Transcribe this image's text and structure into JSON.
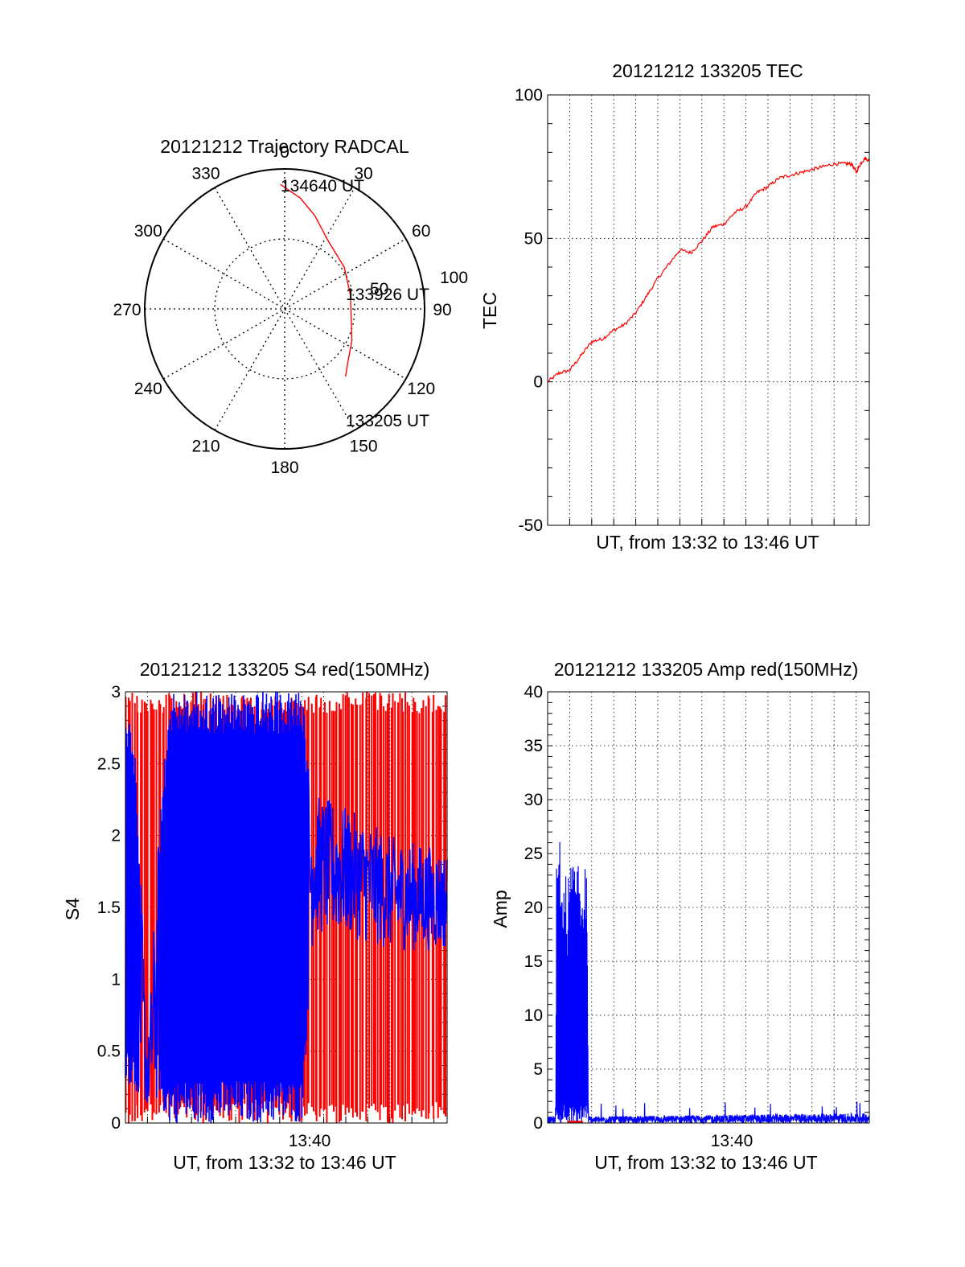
{
  "chart_data": [
    {
      "type": "polar",
      "title": "20121212 Trajectory RADCAL",
      "angle_labels": [
        "0",
        "30",
        "60",
        "90",
        "120",
        "150",
        "180",
        "210",
        "240",
        "270",
        "300",
        "330"
      ],
      "radius_labels": [
        "50",
        "100"
      ],
      "rlim": [
        0,
        100
      ],
      "grid": true,
      "colors": {
        "trajectory": "#ff0000",
        "grid": "#000000"
      },
      "trajectory": [
        {
          "az": 358,
          "r": 89
        },
        {
          "az": 8,
          "r": 80
        },
        {
          "az": 18,
          "r": 70
        },
        {
          "az": 32,
          "r": 58
        },
        {
          "az": 55,
          "r": 52
        },
        {
          "az": 78,
          "r": 48
        },
        {
          "az": 98,
          "r": 48
        },
        {
          "az": 115,
          "r": 53
        },
        {
          "az": 130,
          "r": 59
        },
        {
          "az": 138,
          "r": 65
        }
      ],
      "annotations": [
        {
          "text": "134640 UT",
          "az": 358,
          "r": 89
        },
        {
          "text": "133926 UT",
          "az": 80,
          "r": 48
        },
        {
          "text": "133205 UT",
          "az": 138,
          "r": 65
        }
      ]
    },
    {
      "type": "line",
      "title": "20121212 133205 TEC",
      "xlabel": "UT, from 13:32 to 13:46 UT",
      "ylabel": "TEC",
      "xlim": [
        0,
        14.6
      ],
      "ylim": [
        -50,
        100
      ],
      "yticks": [
        -50,
        0,
        50,
        100
      ],
      "grid": true,
      "series": [
        {
          "color": "#ff0000",
          "x": [
            0,
            0.5,
            1.0,
            1.5,
            2.0,
            2.5,
            3.0,
            3.5,
            4.0,
            4.5,
            5.0,
            5.5,
            6.0,
            6.5,
            7.0,
            7.5,
            8.0,
            8.5,
            9.0,
            9.5,
            10.0,
            10.5,
            11.0,
            11.5,
            12.0,
            12.5,
            13.0,
            13.5,
            13.8,
            14.0,
            14.2,
            14.4,
            14.6
          ],
          "y": [
            0,
            3,
            4,
            9,
            14,
            15,
            18,
            20,
            24,
            30,
            36,
            41,
            46,
            45,
            49,
            54,
            55,
            59,
            61,
            66,
            68,
            71,
            72,
            73,
            74,
            75,
            76,
            76,
            76,
            73,
            76,
            78,
            77
          ]
        }
      ]
    },
    {
      "type": "line",
      "title": "20121212 133205 S4 red(150MHz)",
      "xlabel": "UT, from 13:32 to 13:46 UT",
      "ylabel": "S4",
      "xlim": [
        0,
        14.6
      ],
      "xticks": [
        {
          "x": 8,
          "label": "13:40"
        }
      ],
      "ylim": [
        0,
        3
      ],
      "yticks": [
        0,
        0.5,
        1,
        1.5,
        2,
        2.5,
        3
      ],
      "grid": true,
      "series": [
        {
          "color": "#ff0000",
          "noisy": true,
          "envelope": [
            [
              0,
              0,
              3
            ],
            [
              14.6,
              0,
              3
            ]
          ]
        },
        {
          "color": "#0000ff",
          "noisy": true,
          "envelope": [
            [
              0,
              0.3,
              3
            ],
            [
              0.5,
              0.2,
              2.5
            ],
            [
              1.0,
              0.1,
              0.5
            ],
            [
              1.5,
              0.1,
              2.0
            ],
            [
              2.0,
              0,
              3
            ],
            [
              8.0,
              0,
              3
            ],
            [
              8.5,
              1.3,
              2.3
            ],
            [
              10,
              1.3,
              2.2
            ],
            [
              12,
              1.2,
              2.0
            ],
            [
              14.6,
              1.2,
              1.9
            ]
          ]
        }
      ]
    },
    {
      "type": "line",
      "title": "20121212 133205 Amp red(150MHz)",
      "xlabel": "UT, from 13:32 to 13:46 UT",
      "ylabel": "Amp",
      "xlim": [
        0,
        14.6
      ],
      "xticks": [
        {
          "x": 8,
          "label": "13:40"
        }
      ],
      "ylim": [
        0,
        40
      ],
      "yticks": [
        0,
        5,
        10,
        15,
        20,
        25,
        30,
        35,
        40
      ],
      "grid": true,
      "series": [
        {
          "color": "#0000ff",
          "noisy": true,
          "envelope": [
            [
              0,
              0,
              1
            ],
            [
              0.35,
              0,
              1
            ],
            [
              0.4,
              0,
              24
            ],
            [
              1.8,
              0,
              24
            ],
            [
              1.85,
              0,
              1
            ],
            [
              14.6,
              0,
              1.5
            ]
          ]
        },
        {
          "color": "#ff0000",
          "noisy": false,
          "envelope": [
            [
              0.9,
              0,
              0.3
            ],
            [
              1.6,
              0,
              0.3
            ]
          ]
        }
      ]
    }
  ]
}
